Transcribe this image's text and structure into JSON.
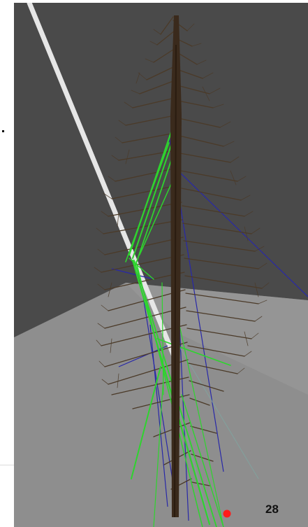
{
  "scene": {
    "frame_counter": "28",
    "colors": {
      "wall": "#4a4a4a",
      "floor": "#8e8e8e",
      "floor_light": "#9a9a9a",
      "trunk": "#3a2a1c",
      "branch": "#4b3a28",
      "green_ray": "#2ed42e",
      "blue_ray": "#2828a8",
      "light_ray": "#e0e0e0",
      "marker": "#ff1a1a"
    },
    "icons": [
      "tree-model",
      "red-marker-dot"
    ]
  }
}
